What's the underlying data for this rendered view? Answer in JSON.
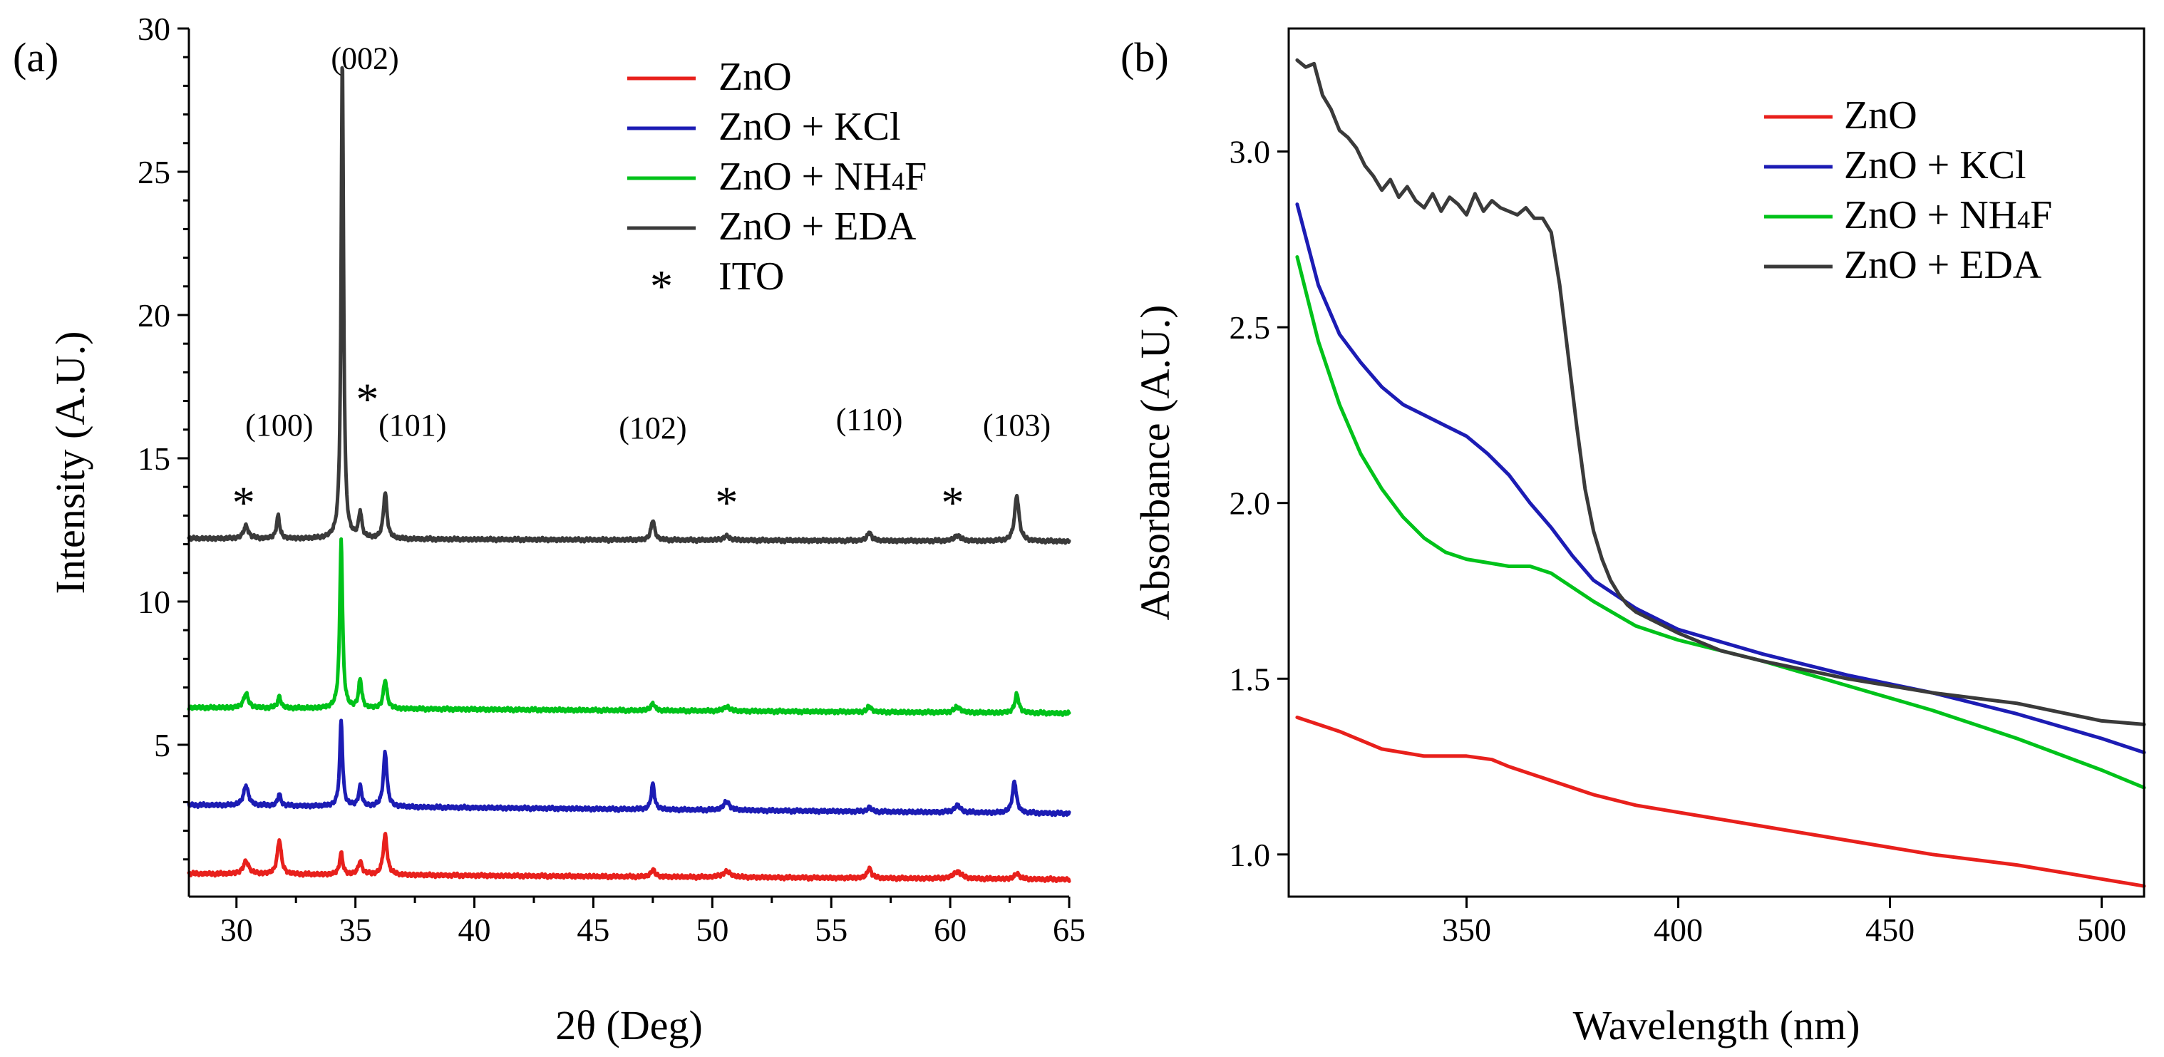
{
  "chart_data": [
    {
      "type": "line",
      "panel_label": "(a)",
      "xlabel": "2θ (Deg)",
      "ylabel": "Intensity (A.U.)",
      "xlim": [
        28,
        65
      ],
      "ylim": [
        -0.3,
        30
      ],
      "xticks": [
        30,
        35,
        40,
        45,
        50,
        55,
        60,
        65
      ],
      "yticks": [
        5,
        10,
        15,
        20,
        25,
        30
      ],
      "xtick_labels": [
        "30",
        "35",
        "40",
        "45",
        "50",
        "55",
        "60",
        "65"
      ],
      "ytick_labels": [
        "5",
        "10",
        "15",
        "20",
        "25",
        "30"
      ],
      "grid": false,
      "legend_position": "top-right",
      "legend": [
        {
          "label": "ZnO",
          "color": "#e8201c",
          "kind": "line"
        },
        {
          "label": "ZnO + KCl",
          "color": "#1c1cb4",
          "kind": "line"
        },
        {
          "label": "ZnO + NH4F",
          "color": "#00c21a",
          "kind": "line"
        },
        {
          "label": "ZnO + EDA",
          "color": "#3a3a3a",
          "kind": "line"
        },
        {
          "label": "ITO",
          "color": "#000000",
          "kind": "star"
        }
      ],
      "series": [
        {
          "name": "ZnO",
          "color": "#e8201c",
          "baseline": [
            0.5,
            0.3
          ],
          "peaks": [
            [
              30.4,
              0.45,
              0.14
            ],
            [
              31.8,
              1.2,
              0.1
            ],
            [
              34.4,
              0.75,
              0.08
            ],
            [
              35.2,
              0.45,
              0.1
            ],
            [
              36.25,
              1.4,
              0.1
            ],
            [
              47.5,
              0.25,
              0.1
            ],
            [
              50.6,
              0.2,
              0.2
            ],
            [
              56.6,
              0.35,
              0.1
            ],
            [
              60.3,
              0.25,
              0.2
            ],
            [
              62.8,
              0.2,
              0.12
            ]
          ]
        },
        {
          "name": "ZnO + KCl",
          "color": "#1c1cb4",
          "baseline": [
            2.9,
            2.6
          ],
          "peaks": [
            [
              30.4,
              0.7,
              0.12
            ],
            [
              31.8,
              0.4,
              0.08
            ],
            [
              34.4,
              3.0,
              0.07
            ],
            [
              35.2,
              0.7,
              0.08
            ],
            [
              36.25,
              1.9,
              0.09
            ],
            [
              47.5,
              0.9,
              0.08
            ],
            [
              50.6,
              0.3,
              0.15
            ],
            [
              56.6,
              0.15,
              0.1
            ],
            [
              60.3,
              0.25,
              0.15
            ],
            [
              62.7,
              1.1,
              0.1
            ]
          ]
        },
        {
          "name": "ZnO + NH4F",
          "color": "#00c21a",
          "baseline": [
            6.3,
            6.1
          ],
          "peaks": [
            [
              30.4,
              0.5,
              0.12
            ],
            [
              31.8,
              0.4,
              0.08
            ],
            [
              34.4,
              5.9,
              0.07
            ],
            [
              35.2,
              1.0,
              0.08
            ],
            [
              36.25,
              1.0,
              0.09
            ],
            [
              47.5,
              0.25,
              0.1
            ],
            [
              50.6,
              0.15,
              0.15
            ],
            [
              56.6,
              0.2,
              0.1
            ],
            [
              60.3,
              0.2,
              0.15
            ],
            [
              62.8,
              0.65,
              0.1
            ]
          ]
        },
        {
          "name": "ZnO + EDA",
          "color": "#3a3a3a",
          "baseline": [
            12.2,
            12.1
          ],
          "peaks": [
            [
              30.4,
              0.45,
              0.12
            ],
            [
              31.75,
              0.8,
              0.08
            ],
            [
              34.45,
              16.8,
              0.06
            ],
            [
              35.2,
              0.9,
              0.08
            ],
            [
              36.25,
              1.6,
              0.09
            ],
            [
              47.5,
              0.7,
              0.09
            ],
            [
              50.6,
              0.15,
              0.15
            ],
            [
              56.6,
              0.3,
              0.1
            ],
            [
              60.3,
              0.2,
              0.15
            ],
            [
              62.8,
              1.6,
              0.11
            ]
          ]
        }
      ],
      "annotations": [
        {
          "text": "(002)",
          "x": 35.4,
          "y": 28.6
        },
        {
          "text": "(100)",
          "x": 31.8,
          "y": 15.8
        },
        {
          "text": "(101)",
          "x": 37.4,
          "y": 15.8
        },
        {
          "text": "(102)",
          "x": 47.5,
          "y": 15.7
        },
        {
          "text": "(110)",
          "x": 56.6,
          "y": 16.0
        },
        {
          "text": "(103)",
          "x": 62.8,
          "y": 15.8
        }
      ],
      "ito_markers": [
        [
          30.3,
          13.8
        ],
        [
          35.5,
          17.4
        ],
        [
          50.6,
          13.8
        ],
        [
          60.1,
          13.8
        ]
      ]
    },
    {
      "type": "line",
      "panel_label": "(b)",
      "xlabel": "Wavelength (nm)",
      "ylabel": "Absorbance (A.U.)",
      "xlim": [
        308,
        510
      ],
      "ylim": [
        0.88,
        3.35
      ],
      "xticks": [
        350,
        400,
        450,
        500
      ],
      "yticks": [
        1.0,
        1.5,
        2.0,
        2.5,
        3.0
      ],
      "xtick_labels": [
        "350",
        "400",
        "450",
        "500"
      ],
      "ytick_labels": [
        "1.0",
        "1.5",
        "2.0",
        "2.5",
        "3.0"
      ],
      "grid": false,
      "legend_position": "top-right",
      "legend": [
        {
          "label": "ZnO",
          "color": "#e8201c",
          "kind": "line"
        },
        {
          "label": "ZnO + KCl",
          "color": "#1c1cb4",
          "kind": "line"
        },
        {
          "label": "ZnO + NH4F",
          "color": "#00c21a",
          "kind": "line"
        },
        {
          "label": "ZnO + EDA",
          "color": "#3a3a3a",
          "kind": "line"
        }
      ],
      "series": [
        {
          "name": "ZnO",
          "color": "#e8201c",
          "x": [
            310,
            320,
            330,
            340,
            350,
            356,
            360,
            370,
            380,
            390,
            400,
            420,
            440,
            460,
            480,
            500,
            510
          ],
          "y": [
            1.39,
            1.35,
            1.3,
            1.28,
            1.28,
            1.27,
            1.25,
            1.21,
            1.17,
            1.14,
            1.12,
            1.08,
            1.04,
            1.0,
            0.97,
            0.93,
            0.91
          ]
        },
        {
          "name": "ZnO + KCl",
          "color": "#1c1cb4",
          "x": [
            310,
            315,
            320,
            325,
            330,
            335,
            340,
            345,
            350,
            355,
            360,
            365,
            370,
            375,
            380,
            390,
            400,
            420,
            440,
            460,
            480,
            500,
            510
          ],
          "y": [
            2.85,
            2.62,
            2.48,
            2.4,
            2.33,
            2.28,
            2.25,
            2.22,
            2.19,
            2.14,
            2.08,
            2.0,
            1.93,
            1.85,
            1.78,
            1.7,
            1.64,
            1.57,
            1.51,
            1.46,
            1.4,
            1.33,
            1.29
          ]
        },
        {
          "name": "ZnO + NH4F",
          "color": "#00c21a",
          "x": [
            310,
            315,
            320,
            325,
            330,
            335,
            340,
            345,
            350,
            355,
            360,
            365,
            370,
            375,
            380,
            390,
            400,
            420,
            440,
            460,
            480,
            500,
            510
          ],
          "y": [
            2.7,
            2.46,
            2.28,
            2.14,
            2.04,
            1.96,
            1.9,
            1.86,
            1.84,
            1.83,
            1.82,
            1.82,
            1.8,
            1.76,
            1.72,
            1.65,
            1.61,
            1.55,
            1.48,
            1.41,
            1.33,
            1.24,
            1.19
          ]
        },
        {
          "name": "ZnO + EDA",
          "color": "#3a3a3a",
          "x": [
            310,
            312,
            314,
            316,
            318,
            320,
            322,
            324,
            326,
            328,
            330,
            332,
            334,
            336,
            338,
            340,
            342,
            344,
            346,
            348,
            350,
            352,
            354,
            356,
            358,
            360,
            362,
            364,
            366,
            368,
            370,
            372,
            374,
            376,
            378,
            380,
            382,
            384,
            386,
            388,
            390,
            395,
            400,
            410,
            420,
            440,
            460,
            480,
            500,
            510
          ],
          "y": [
            3.26,
            3.24,
            3.25,
            3.16,
            3.12,
            3.06,
            3.04,
            3.01,
            2.96,
            2.93,
            2.89,
            2.92,
            2.87,
            2.9,
            2.86,
            2.84,
            2.88,
            2.83,
            2.87,
            2.85,
            2.82,
            2.88,
            2.83,
            2.86,
            2.84,
            2.83,
            2.82,
            2.84,
            2.81,
            2.81,
            2.77,
            2.62,
            2.42,
            2.22,
            2.04,
            1.92,
            1.84,
            1.78,
            1.74,
            1.71,
            1.69,
            1.66,
            1.63,
            1.58,
            1.55,
            1.5,
            1.46,
            1.43,
            1.38,
            1.37
          ]
        }
      ]
    }
  ]
}
